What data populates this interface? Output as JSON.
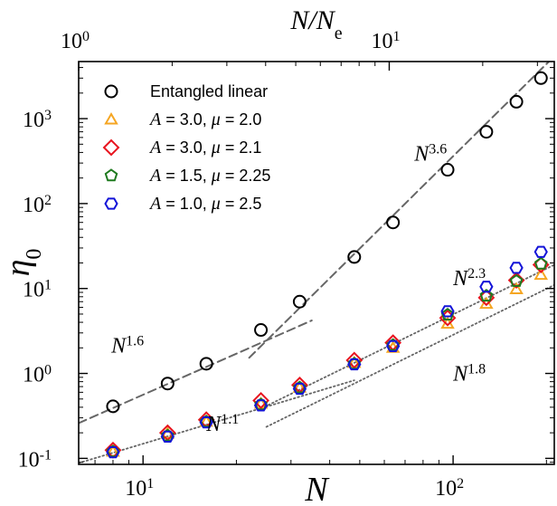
{
  "chart_data": {
    "type": "scatter",
    "xlabel": "N",
    "ylabel": "η0",
    "top_xlabel": "N/Ne",
    "xscale": "log",
    "yscale": "log",
    "xlim": [
      6.2,
      212
    ],
    "ylim": [
      0.085,
      4700
    ],
    "top_xlim": [
      1.0,
      34
    ],
    "x_ticks": [
      {
        "value": 10,
        "base": "10",
        "exp": "1"
      },
      {
        "value": 100,
        "base": "10",
        "exp": "2"
      }
    ],
    "top_ticks": [
      {
        "value": 1,
        "base": "10",
        "exp": "0"
      },
      {
        "value": 10,
        "base": "10",
        "exp": "1"
      }
    ],
    "y_ticks": [
      {
        "value": 0.1,
        "base": "10",
        "exp": "-1"
      },
      {
        "value": 1,
        "base": "10",
        "exp": "0"
      },
      {
        "value": 10,
        "base": "10",
        "exp": "1"
      },
      {
        "value": 100,
        "base": "10",
        "exp": "2"
      },
      {
        "value": 1000,
        "base": "10",
        "exp": "3"
      }
    ],
    "legend_position": "top-left",
    "series": [
      {
        "name": "Entangled linear",
        "marker": "circle",
        "color": "#000000",
        "x": [
          8,
          12,
          16,
          24,
          32,
          48,
          64,
          96,
          128,
          160,
          192
        ],
        "y": [
          0.41,
          0.76,
          1.3,
          3.25,
          7.0,
          23.5,
          60,
          250,
          700,
          1580,
          3000
        ]
      },
      {
        "name": "A = 3.0, μ = 2.0",
        "marker": "triangle",
        "color": "#F5A623",
        "x": [
          8,
          12,
          16,
          24,
          32,
          48,
          64,
          96,
          128,
          160,
          192
        ],
        "y": [
          0.12,
          0.195,
          0.27,
          0.44,
          0.68,
          1.33,
          2.0,
          3.85,
          6.6,
          9.8,
          14.5
        ]
      },
      {
        "name": "A = 3.0, μ = 2.1",
        "marker": "diamond",
        "color": "#E8141E",
        "x": [
          8,
          12,
          16,
          24,
          32,
          48,
          64,
          96,
          128,
          160,
          192
        ],
        "y": [
          0.125,
          0.2,
          0.285,
          0.48,
          0.73,
          1.43,
          2.3,
          4.5,
          7.8,
          12.5,
          19
        ]
      },
      {
        "name": "A = 1.5, μ = 2.25",
        "marker": "pentagon",
        "color": "#1F7A1F",
        "x": [
          8,
          12,
          16,
          24,
          32,
          48,
          64,
          96,
          128,
          160,
          192
        ],
        "y": [
          0.12,
          0.185,
          0.27,
          0.43,
          0.68,
          1.3,
          2.15,
          4.9,
          8.2,
          12.2,
          19.5
        ]
      },
      {
        "name": "A = 1.0, μ = 2.5",
        "marker": "hexagon",
        "color": "#1414D8",
        "x": [
          8,
          12,
          16,
          24,
          32,
          48,
          64,
          96,
          128,
          160,
          192
        ],
        "y": [
          0.118,
          0.18,
          0.265,
          0.42,
          0.66,
          1.28,
          2.1,
          5.4,
          10.5,
          17.5,
          27
        ]
      }
    ],
    "fits": [
      {
        "style": "dashed",
        "color": "#666666",
        "x": [
          6.2,
          35
        ],
        "y": [
          0.26,
          4.2
        ]
      },
      {
        "style": "dashed",
        "color": "#666666",
        "x": [
          22,
          212
        ],
        "y": [
          1.53,
          5430
        ]
      },
      {
        "style": "dotted",
        "color": "#666666",
        "x": [
          6.2,
          48
        ],
        "y": [
          0.088,
          0.83
        ]
      },
      {
        "style": "dotted",
        "color": "#666666",
        "x": [
          24,
          212
        ],
        "y": [
          0.385,
          19
        ]
      },
      {
        "style": "dotted",
        "color": "#666666",
        "x": [
          25,
          212
        ],
        "y": [
          0.235,
          11
        ]
      }
    ],
    "annotations": [
      {
        "base": "N",
        "exp": "3.6",
        "x": 75,
        "y": 320
      },
      {
        "base": "N",
        "exp": "1.6",
        "x": 7.9,
        "y": 1.75
      },
      {
        "base": "N",
        "exp": "1.1",
        "x": 16,
        "y": 0.21
      },
      {
        "base": "N",
        "exp": "2.3",
        "x": 100,
        "y": 11
      },
      {
        "base": "N",
        "exp": "1.8",
        "x": 100,
        "y": 0.82
      }
    ]
  }
}
